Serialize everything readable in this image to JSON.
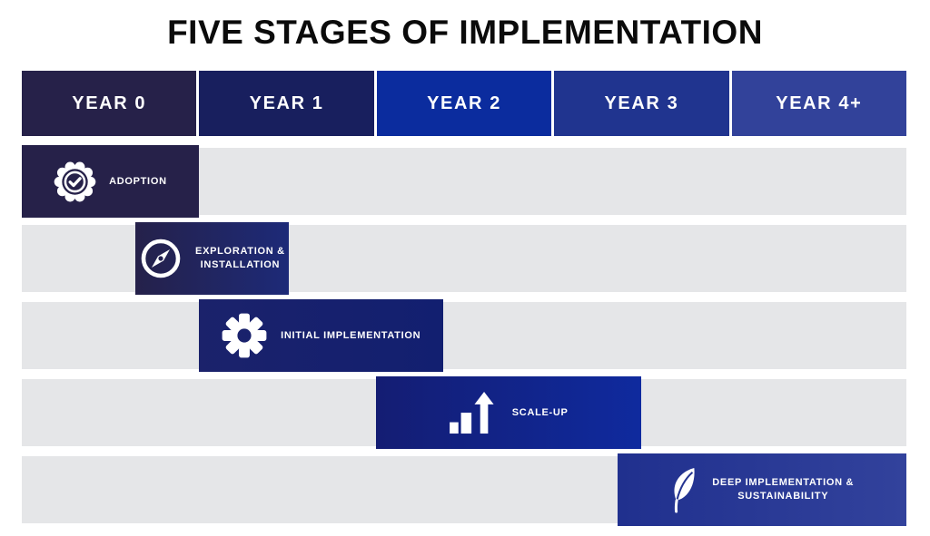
{
  "title": "FIVE STAGES OF IMPLEMENTATION",
  "timeline": {
    "total_years": 5,
    "years": [
      {
        "label": "YEAR 0",
        "color": "#262149"
      },
      {
        "label": "YEAR 1",
        "color": "#181f5e"
      },
      {
        "label": "YEAR 2",
        "color": "#0b2c9e"
      },
      {
        "label": "YEAR 3",
        "color": "#20348f"
      },
      {
        "label": "YEAR 4+",
        "color": "#32429a"
      }
    ]
  },
  "track_color": "#e5e6e8",
  "stages": [
    {
      "name": "adoption",
      "label_lines": [
        "ADOPTION"
      ],
      "icon": "badge-check-icon",
      "start_year": 0.0,
      "end_year": 1.0,
      "colors": [
        "#262149",
        "#262149"
      ]
    },
    {
      "name": "exploration-installation",
      "label_lines": [
        "EXPLORATION &",
        "INSTALLATION"
      ],
      "icon": "compass-icon",
      "start_year": 0.64,
      "end_year": 1.51,
      "colors": [
        "#25214a",
        "#1d2a78"
      ]
    },
    {
      "name": "initial-implementation",
      "label_lines": [
        "INITIAL IMPLEMENTATION"
      ],
      "icon": "gear-icon",
      "start_year": 1.0,
      "end_year": 2.38,
      "colors": [
        "#1b226b",
        "#121f70"
      ]
    },
    {
      "name": "scale-up",
      "label_lines": [
        "SCALE-UP"
      ],
      "icon": "growth-chart-icon",
      "start_year": 2.0,
      "end_year": 3.5,
      "colors": [
        "#141d73",
        "#0f2a9e"
      ]
    },
    {
      "name": "deep-implementation-sustainability",
      "label_lines": [
        "DEEP IMPLEMENTATION &",
        "SUSTAINABILITY"
      ],
      "icon": "leaf-icon",
      "start_year": 3.37,
      "end_year": 5.0,
      "colors": [
        "#20308e",
        "#32429c"
      ]
    }
  ]
}
